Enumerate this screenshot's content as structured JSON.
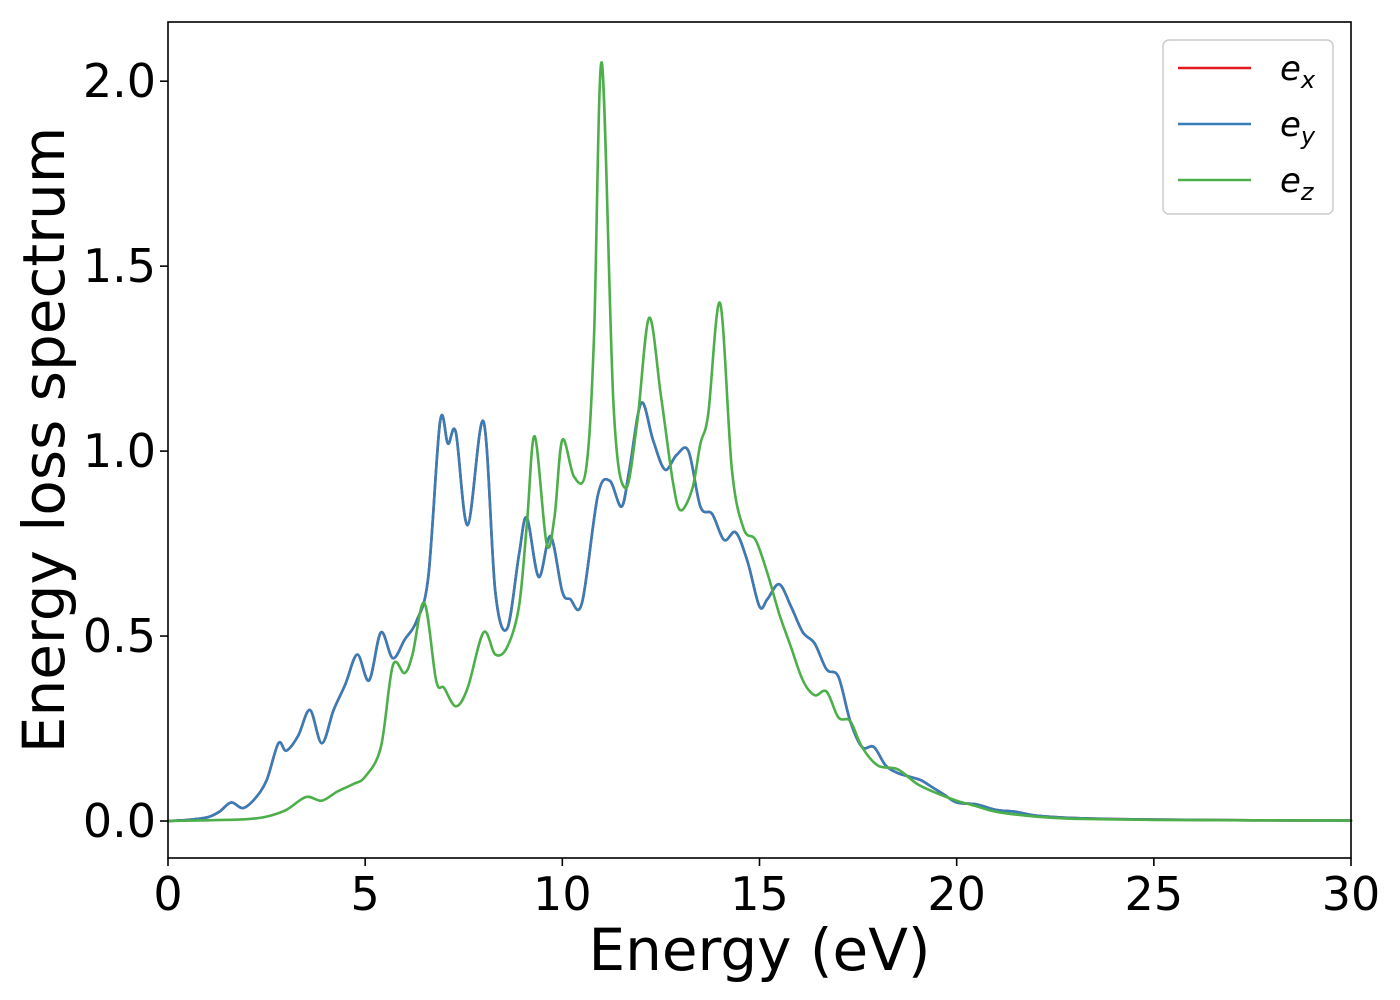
{
  "chart_data": {
    "type": "line",
    "title": "",
    "xlabel": "Energy (eV)",
    "ylabel": "Energy loss spectrum",
    "xlim": [
      0,
      30
    ],
    "ylim": [
      -0.1,
      2.16
    ],
    "x_ticks": [
      0,
      5,
      10,
      15,
      20,
      25,
      30
    ],
    "x_tick_labels": [
      "0",
      "5",
      "10",
      "15",
      "20",
      "25",
      "30"
    ],
    "y_ticks": [
      0.0,
      0.5,
      1.0,
      1.5,
      2.0
    ],
    "y_tick_labels": [
      "0.0",
      "0.5",
      "1.0",
      "1.5",
      "2.0"
    ],
    "grid": false,
    "legend_position": "top-right",
    "series": [
      {
        "name": "e_x",
        "legend_base": "e",
        "legend_sub": "x",
        "color": "#e41a1c",
        "same_as": "e_y",
        "x": [],
        "y": []
      },
      {
        "name": "e_y",
        "legend_base": "e",
        "legend_sub": "y",
        "color": "#377eb8",
        "x": [
          0,
          0.5,
          1.0,
          1.3,
          1.6,
          1.9,
          2.2,
          2.5,
          2.8,
          3.0,
          3.3,
          3.6,
          3.9,
          4.2,
          4.5,
          4.8,
          5.1,
          5.4,
          5.7,
          6.0,
          6.3,
          6.6,
          6.9,
          7.1,
          7.3,
          7.6,
          8.0,
          8.3,
          8.6,
          8.9,
          9.1,
          9.4,
          9.7,
          10.0,
          10.2,
          10.5,
          10.9,
          11.2,
          11.5,
          11.7,
          12.0,
          12.3,
          12.6,
          12.9,
          13.2,
          13.5,
          13.8,
          14.1,
          14.4,
          14.7,
          15.0,
          15.2,
          15.5,
          15.8,
          16.1,
          16.4,
          16.7,
          17.0,
          17.3,
          17.6,
          17.9,
          18.2,
          18.5,
          18.8,
          19.1,
          19.4,
          19.7,
          20.0,
          20.5,
          21.0,
          21.5,
          22.0,
          23.0,
          25.0,
          27.5,
          30.0
        ],
        "y": [
          0.0,
          0.003,
          0.01,
          0.025,
          0.05,
          0.035,
          0.06,
          0.11,
          0.21,
          0.19,
          0.23,
          0.3,
          0.21,
          0.3,
          0.37,
          0.45,
          0.38,
          0.51,
          0.44,
          0.49,
          0.54,
          0.66,
          1.08,
          1.02,
          1.05,
          0.8,
          1.08,
          0.62,
          0.52,
          0.72,
          0.82,
          0.66,
          0.77,
          0.62,
          0.6,
          0.59,
          0.88,
          0.92,
          0.85,
          0.95,
          1.13,
          1.03,
          0.95,
          0.99,
          1.0,
          0.85,
          0.83,
          0.76,
          0.78,
          0.7,
          0.58,
          0.6,
          0.64,
          0.58,
          0.51,
          0.48,
          0.41,
          0.39,
          0.27,
          0.2,
          0.2,
          0.15,
          0.13,
          0.12,
          0.11,
          0.09,
          0.07,
          0.05,
          0.045,
          0.03,
          0.025,
          0.015,
          0.008,
          0.004,
          0.002,
          0.001
        ]
      },
      {
        "name": "e_z",
        "legend_base": "e",
        "legend_sub": "z",
        "color": "#4daf4a",
        "x": [
          0,
          1.0,
          2.0,
          2.5,
          3.0,
          3.5,
          3.9,
          4.3,
          4.7,
          5.0,
          5.4,
          5.7,
          6.0,
          6.2,
          6.5,
          6.8,
          7.0,
          7.3,
          7.6,
          8.0,
          8.3,
          8.6,
          8.9,
          9.1,
          9.3,
          9.6,
          9.8,
          10.0,
          10.3,
          10.6,
          10.8,
          11.0,
          11.3,
          11.6,
          11.9,
          12.2,
          12.5,
          12.8,
          13.0,
          13.3,
          13.5,
          13.7,
          14.0,
          14.3,
          14.6,
          14.9,
          15.2,
          15.5,
          15.8,
          16.1,
          16.4,
          16.7,
          17.0,
          17.3,
          17.6,
          18.0,
          18.5,
          19.0,
          19.5,
          20.0,
          20.5,
          21.0,
          22.0,
          23.0,
          25.0,
          27.5,
          30.0
        ],
        "y": [
          0.0,
          0.002,
          0.005,
          0.012,
          0.03,
          0.065,
          0.055,
          0.08,
          0.1,
          0.12,
          0.2,
          0.42,
          0.4,
          0.45,
          0.59,
          0.38,
          0.36,
          0.31,
          0.36,
          0.51,
          0.45,
          0.47,
          0.58,
          0.8,
          1.04,
          0.75,
          0.82,
          1.03,
          0.93,
          0.95,
          1.3,
          2.05,
          1.12,
          0.9,
          1.08,
          1.36,
          1.15,
          0.92,
          0.84,
          0.9,
          1.02,
          1.1,
          1.4,
          0.95,
          0.79,
          0.76,
          0.67,
          0.56,
          0.47,
          0.38,
          0.34,
          0.35,
          0.28,
          0.27,
          0.2,
          0.15,
          0.14,
          0.1,
          0.075,
          0.055,
          0.04,
          0.025,
          0.012,
          0.006,
          0.003,
          0.002,
          0.001
        ]
      }
    ]
  }
}
